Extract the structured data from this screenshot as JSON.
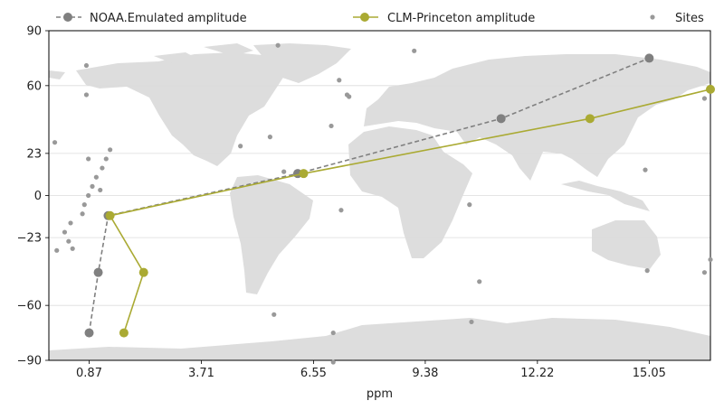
{
  "chart_data": {
    "type": "line",
    "title": "",
    "xlabel": "ppm",
    "ylabel": "",
    "xlim": [
      -0.15,
      16.6
    ],
    "ylim": [
      -90,
      90
    ],
    "xticks": [
      0.87,
      3.71,
      6.55,
      9.38,
      12.22,
      15.05
    ],
    "xtick_labels": [
      "0.87",
      "3.71",
      "6.55",
      "9.38",
      "12.22",
      "15.05"
    ],
    "yticks": [
      -90,
      -60,
      -23,
      0,
      23,
      60,
      90
    ],
    "ytick_labels": [
      "−90",
      "−60",
      "−23",
      "0",
      "23",
      "60",
      "90"
    ],
    "grid": true,
    "legend_position": "top",
    "background": "world-map",
    "series": [
      {
        "name": "NOAA.Emulated amplitude",
        "style": "dashed",
        "color": "#808080",
        "points": [
          [
            0.87,
            -75
          ],
          [
            1.1,
            -42
          ],
          [
            1.35,
            -11
          ],
          [
            6.15,
            12
          ],
          [
            11.3,
            42
          ],
          [
            15.05,
            75
          ]
        ]
      },
      {
        "name": "CLM-Princeton amplitude",
        "style": "solid",
        "color": "#aaaa33",
        "points": [
          [
            1.75,
            -75
          ],
          [
            2.25,
            -42
          ],
          [
            1.4,
            -11
          ],
          [
            6.3,
            12
          ],
          [
            13.55,
            42
          ],
          [
            16.6,
            58
          ]
        ]
      },
      {
        "name": "Sites",
        "style": "points",
        "color": "#999999",
        "points": [
          [
            0.05,
            -30
          ],
          [
            0.25,
            -20
          ],
          [
            0.4,
            -15
          ],
          [
            0.35,
            -25
          ],
          [
            0.7,
            -10
          ],
          [
            0.75,
            -5
          ],
          [
            0.85,
            0
          ],
          [
            0.95,
            5
          ],
          [
            1.05,
            10
          ],
          [
            1.2,
            15
          ],
          [
            1.3,
            20
          ],
          [
            1.4,
            25
          ],
          [
            1.15,
            3
          ],
          [
            0.85,
            20
          ],
          [
            0.0,
            29
          ],
          [
            0.8,
            71
          ],
          [
            0.8,
            55
          ],
          [
            4.7,
            27
          ],
          [
            5.45,
            32
          ],
          [
            5.55,
            -65
          ],
          [
            5.65,
            82
          ],
          [
            5.8,
            13
          ],
          [
            7.0,
            38
          ],
          [
            7.2,
            63
          ],
          [
            7.25,
            -8
          ],
          [
            7.45,
            54
          ],
          [
            9.1,
            79
          ],
          [
            10.5,
            -5
          ],
          [
            10.75,
            -47
          ],
          [
            10.55,
            -69
          ],
          [
            15.0,
            -41
          ],
          [
            16.45,
            -42
          ],
          [
            16.6,
            -35
          ],
          [
            16.45,
            53
          ],
          [
            14.95,
            14
          ],
          [
            7.05,
            -75
          ],
          [
            7.05,
            -91
          ],
          [
            7.4,
            55
          ],
          [
            0.45,
            -29
          ]
        ]
      }
    ]
  }
}
